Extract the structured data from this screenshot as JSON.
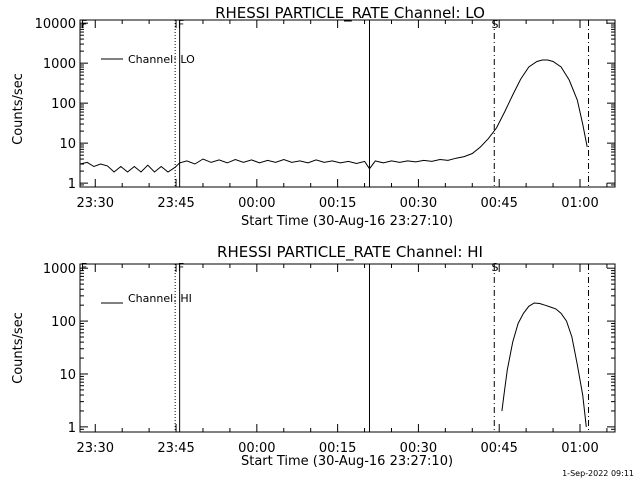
{
  "colors": {
    "background": "#ffffff",
    "foreground": "#000000"
  },
  "footer": {
    "timestamp": "1-Sep-2022 09:11"
  },
  "chart_data": [
    {
      "type": "line",
      "title": "RHESSI PARTICLE_RATE Channel: LO",
      "xlabel": "Start Time (30-Aug-16 23:27:10)",
      "ylabel": "Counts/sec",
      "scale": {
        "x": "time",
        "y": "log"
      },
      "xlim": [
        "23:27:10",
        "01:06:30"
      ],
      "ylim": [
        0.8,
        12000
      ],
      "x_ticks": [
        "23:30",
        "23:45",
        "00:00",
        "00:15",
        "00:30",
        "00:45",
        "01:00"
      ],
      "y_ticks": [
        {
          "value": 1,
          "label": "1"
        },
        {
          "value": 10,
          "label": "10"
        },
        {
          "value": 100,
          "label": "100"
        },
        {
          "value": 1000,
          "label": "1000"
        },
        {
          "value": 10000,
          "label": "10000"
        }
      ],
      "legend": {
        "position": "top-left",
        "entries": [
          "Channel: LO"
        ]
      },
      "markers": [
        {
          "label": "F",
          "time": "23:27:10",
          "style": "none"
        },
        {
          "label": "",
          "time": "23:44:50",
          "style": "dotted"
        },
        {
          "label": "F",
          "time": "23:45:40",
          "style": "solid"
        },
        {
          "label": "",
          "time": "00:20:55",
          "style": "solid"
        },
        {
          "label": "S",
          "time": "00:44:05",
          "style": "dashdot"
        },
        {
          "label": "",
          "time": "01:01:35",
          "style": "dashdot"
        }
      ],
      "series": [
        {
          "name": "Channel: LO",
          "points": [
            [
              "23:27:10",
              3.0
            ],
            [
              "23:28:30",
              3.3
            ],
            [
              "23:29:45",
              2.6
            ],
            [
              "23:31:00",
              3.0
            ],
            [
              "23:32:15",
              2.7
            ],
            [
              "23:33:30",
              1.9
            ],
            [
              "23:34:45",
              2.6
            ],
            [
              "23:36:00",
              1.9
            ],
            [
              "23:37:15",
              2.6
            ],
            [
              "23:38:30",
              1.9
            ],
            [
              "23:39:45",
              2.8
            ],
            [
              "23:41:00",
              1.9
            ],
            [
              "23:42:15",
              2.6
            ],
            [
              "23:43:30",
              1.9
            ],
            [
              "23:44:50",
              2.5
            ],
            [
              "23:45:40",
              3.2
            ],
            [
              "23:47:00",
              3.6
            ],
            [
              "23:48:30",
              3.0
            ],
            [
              "23:50:00",
              4.0
            ],
            [
              "23:51:30",
              3.3
            ],
            [
              "23:53:00",
              3.8
            ],
            [
              "23:54:30",
              3.2
            ],
            [
              "23:56:00",
              3.9
            ],
            [
              "23:57:30",
              3.3
            ],
            [
              "23:59:00",
              3.8
            ],
            [
              "00:00:30",
              3.2
            ],
            [
              "00:02:00",
              3.7
            ],
            [
              "00:03:30",
              3.3
            ],
            [
              "00:05:00",
              3.9
            ],
            [
              "00:06:30",
              3.3
            ],
            [
              "00:08:00",
              3.6
            ],
            [
              "00:09:30",
              3.2
            ],
            [
              "00:11:00",
              3.8
            ],
            [
              "00:12:30",
              3.3
            ],
            [
              "00:14:00",
              3.6
            ],
            [
              "00:15:30",
              3.2
            ],
            [
              "00:17:00",
              3.5
            ],
            [
              "00:18:30",
              3.1
            ],
            [
              "00:20:00",
              3.5
            ],
            [
              "00:20:55",
              2.3
            ],
            [
              "00:22:00",
              3.6
            ],
            [
              "00:23:30",
              3.2
            ],
            [
              "00:25:00",
              3.6
            ],
            [
              "00:26:30",
              3.3
            ],
            [
              "00:28:00",
              3.6
            ],
            [
              "00:29:30",
              3.4
            ],
            [
              "00:31:00",
              3.7
            ],
            [
              "00:32:30",
              3.5
            ],
            [
              "00:34:00",
              3.9
            ],
            [
              "00:35:30",
              3.7
            ],
            [
              "00:37:00",
              4.2
            ],
            [
              "00:38:30",
              4.6
            ],
            [
              "00:40:00",
              5.5
            ],
            [
              "00:41:30",
              8.0
            ],
            [
              "00:43:00",
              13
            ],
            [
              "00:44:30",
              24
            ],
            [
              "00:46:00",
              60
            ],
            [
              "00:47:30",
              160
            ],
            [
              "00:49:00",
              400
            ],
            [
              "00:50:30",
              800
            ],
            [
              "00:52:00",
              1100
            ],
            [
              "00:53:00",
              1200
            ],
            [
              "00:54:00",
              1200
            ],
            [
              "00:55:00",
              1100
            ],
            [
              "00:56:30",
              800
            ],
            [
              "00:58:00",
              380
            ],
            [
              "00:59:30",
              120
            ],
            [
              "01:00:30",
              30
            ],
            [
              "01:01:20",
              8
            ]
          ]
        }
      ]
    },
    {
      "type": "line",
      "title": "RHESSI PARTICLE_RATE Channel: HI",
      "xlabel": "Start Time (30-Aug-16 23:27:10)",
      "ylabel": "Counts/sec",
      "scale": {
        "x": "time",
        "y": "log"
      },
      "xlim": [
        "23:27:10",
        "01:06:30"
      ],
      "ylim": [
        0.8,
        1200
      ],
      "x_ticks": [
        "23:30",
        "23:45",
        "00:00",
        "00:15",
        "00:30",
        "00:45",
        "01:00"
      ],
      "y_ticks": [
        {
          "value": 1,
          "label": "1"
        },
        {
          "value": 10,
          "label": "10"
        },
        {
          "value": 100,
          "label": "100"
        },
        {
          "value": 1000,
          "label": "1000"
        }
      ],
      "legend": {
        "position": "top-left",
        "entries": [
          "Channel: HI"
        ]
      },
      "markers": [
        {
          "label": "F",
          "time": "23:27:10",
          "style": "none"
        },
        {
          "label": "",
          "time": "23:44:50",
          "style": "dotted"
        },
        {
          "label": "F",
          "time": "23:45:40",
          "style": "solid"
        },
        {
          "label": "",
          "time": "00:20:55",
          "style": "solid"
        },
        {
          "label": "S",
          "time": "00:44:05",
          "style": "dashdot"
        },
        {
          "label": "",
          "time": "01:01:35",
          "style": "dashdot"
        }
      ],
      "series": [
        {
          "name": "Channel: HI",
          "points": [
            [
              "00:45:30",
              2.0
            ],
            [
              "00:46:00",
              5
            ],
            [
              "00:46:30",
              12
            ],
            [
              "00:47:30",
              40
            ],
            [
              "00:48:30",
              90
            ],
            [
              "00:49:30",
              140
            ],
            [
              "00:50:30",
              190
            ],
            [
              "00:51:30",
              220
            ],
            [
              "00:52:30",
              215
            ],
            [
              "00:53:30",
              200
            ],
            [
              "00:54:30",
              185
            ],
            [
              "00:55:30",
              170
            ],
            [
              "00:56:30",
              140
            ],
            [
              "00:57:30",
              100
            ],
            [
              "00:58:30",
              50
            ],
            [
              "00:59:30",
              15
            ],
            [
              "01:00:30",
              4
            ],
            [
              "01:01:10",
              1.0
            ]
          ]
        }
      ]
    }
  ]
}
